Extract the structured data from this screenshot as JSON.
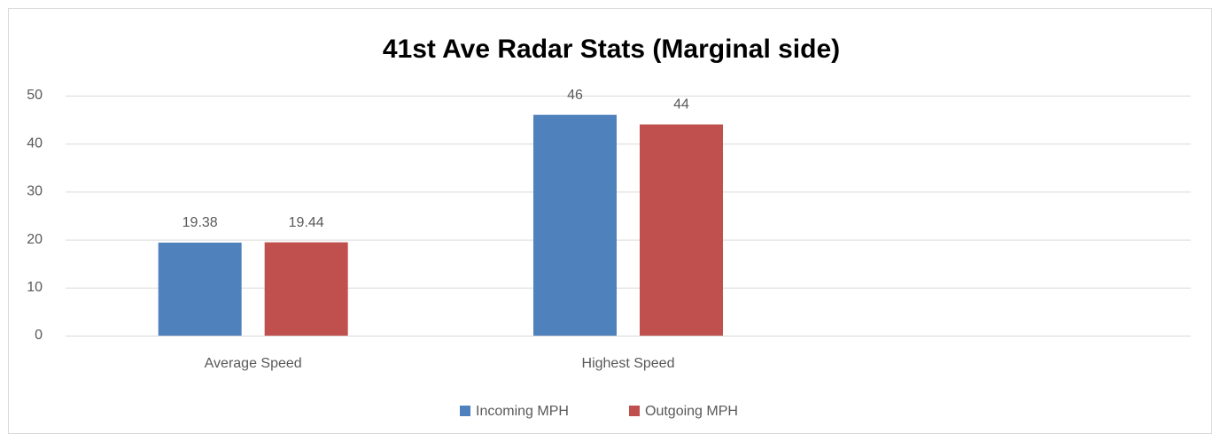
{
  "chart_data": {
    "type": "bar",
    "title": "41st Ave Radar Stats (Marginal side)",
    "categories": [
      "Average Speed",
      "Highest Speed",
      null
    ],
    "series": [
      {
        "name": "Incoming MPH",
        "color": "#4f81bd",
        "values": [
          19.38,
          46,
          null
        ]
      },
      {
        "name": "Outgoing MPH",
        "color": "#c0504d",
        "values": [
          19.44,
          44,
          null
        ]
      }
    ],
    "ylim": [
      0,
      50
    ],
    "yticks": [
      0,
      10,
      20,
      30,
      40,
      50
    ],
    "grid": true,
    "legend": "bottom"
  }
}
